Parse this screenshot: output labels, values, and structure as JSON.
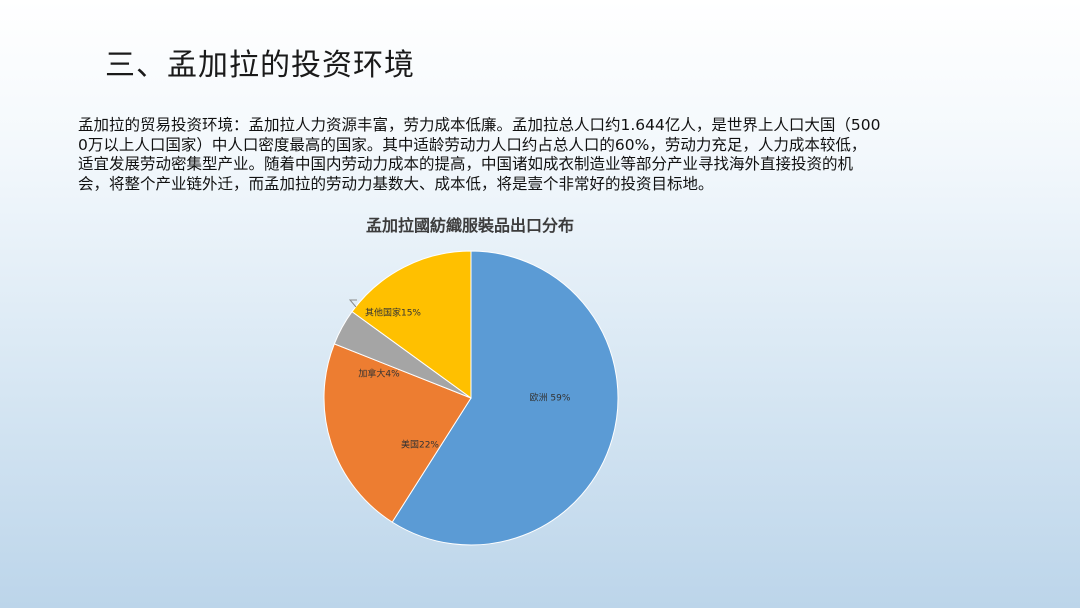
{
  "slide": {
    "title": "三、孟加拉的投资环境",
    "body_lines": [
      "孟加拉的贸易投资环境：孟加拉人力资源丰富，劳力成本低廉。孟加拉总人口约1.644亿人，是世界上人口大国（500",
      "0万以上人口国家）中人口密度最高的国家。其中适龄劳动力人口约占总人口的60%，劳动力充足，人力成本较低，",
      "适宜发展劳动密集型产业。随着中国内劳动力成本的提高，中国诸如成衣制造业等部分产业寻找海外直接投资的机",
      "会，将整个产业链外迁，而孟加拉的劳动力基数大、成本低，将是壹个非常好的投资目标地。"
    ]
  },
  "chart_data": {
    "type": "pie",
    "title": "孟加拉國紡織服裝品出口分布",
    "slices": [
      {
        "name": "欧洲",
        "value": 59,
        "label": "欧洲 59%",
        "color": "#5b9bd5"
      },
      {
        "name": "美国",
        "value": 22,
        "label": "美国22%",
        "color": "#ed7d31"
      },
      {
        "name": "加拿大",
        "value": 4,
        "label": "加拿大4%",
        "color": "#a5a5a5"
      },
      {
        "name": "其他国家",
        "value": 15,
        "label": "其他国家15%",
        "color": "#ffc000"
      }
    ]
  }
}
